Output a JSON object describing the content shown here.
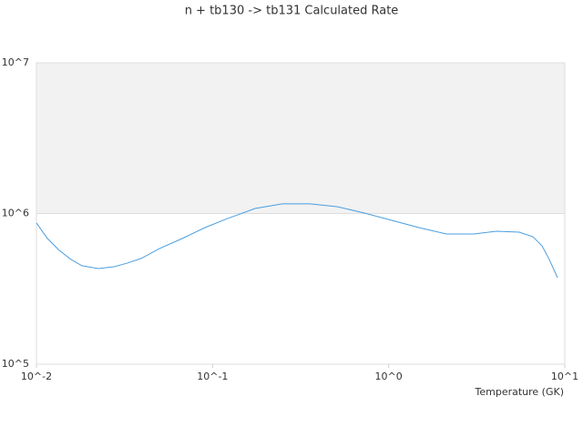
{
  "chart_data": {
    "type": "line",
    "title": "n + tb130 -> tb131 Calculated Rate",
    "x_label": "Temperature (GK)",
    "log_x": true,
    "log_y": true,
    "x": [
      0.01,
      0.01154,
      0.01347,
      0.01573,
      0.01814,
      0.02247,
      0.02753,
      0.0329,
      0.03933,
      0.04993,
      0.06724,
      0.09055,
      0.122,
      0.1743,
      0.2493,
      0.3562,
      0.5092,
      0.7279,
      1.04,
      1.487,
      2.126,
      3.04,
      4.094,
      5.513,
      6.592,
      7.427,
      8.168,
      9.092
    ],
    "series": [
      {
        "color": "#4a9ee0",
        "values": [
          865000,
          683000,
          569000,
          495000,
          450000,
          431000,
          443000,
          469000,
          503000,
          585000,
          682000,
          806000,
          927000,
          1080000,
          1160000,
          1160000,
          1110000,
          1007000,
          901000,
          806000,
          731000,
          731000,
          762000,
          752000,
          701000,
          610000,
          495000,
          375000
        ]
      }
    ],
    "xlim": [
      0.01,
      10
    ],
    "ylim": [
      100000,
      10000000
    ],
    "xticks": [
      {
        "value": 0.01,
        "label": "10^-2"
      },
      {
        "value": 0.1,
        "label": "10^-1"
      },
      {
        "value": 1,
        "label": "10^0"
      },
      {
        "value": 10,
        "label": "10^1"
      }
    ],
    "yticks": [
      {
        "value": 100000,
        "label": "10^5"
      },
      {
        "value": 1000000,
        "label": "10^6"
      },
      {
        "value": 10000000,
        "label": "10^7"
      }
    ]
  }
}
